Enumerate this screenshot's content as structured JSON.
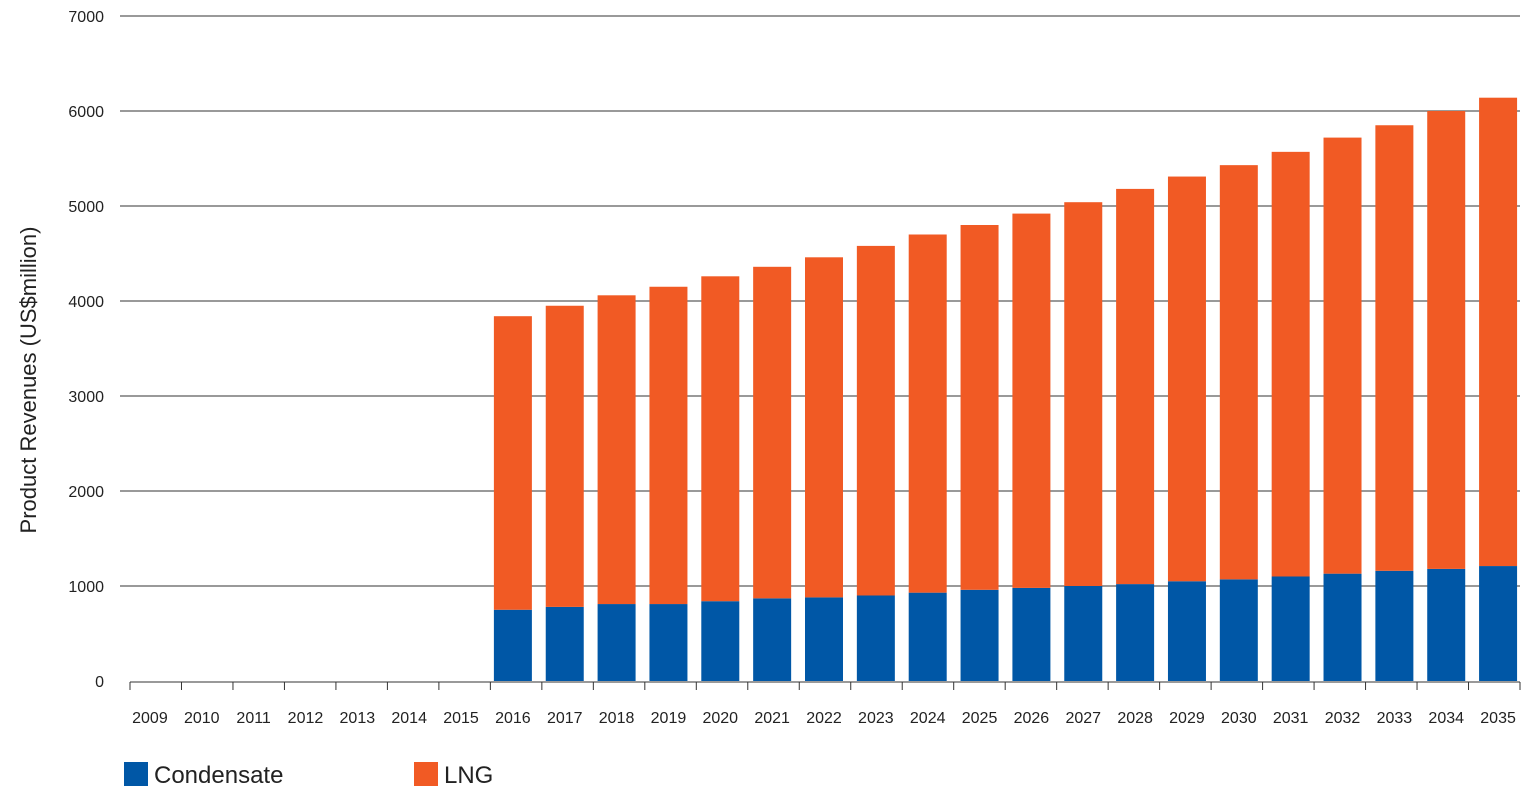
{
  "chart_data": {
    "type": "bar",
    "stacked": true,
    "title": "",
    "xlabel": "",
    "ylabel": "Product Revenues (US$million)",
    "ylim": [
      0,
      7000
    ],
    "yticks": [
      0,
      1000,
      2000,
      3000,
      4000,
      5000,
      6000,
      7000
    ],
    "grid": true,
    "legend_position": "bottom-left",
    "categories": [
      "2009",
      "2010",
      "2011",
      "2012",
      "2013",
      "2014",
      "2015",
      "2016",
      "2017",
      "2018",
      "2019",
      "2020",
      "2021",
      "2022",
      "2023",
      "2024",
      "2025",
      "2026",
      "2027",
      "2028",
      "2029",
      "2030",
      "2031",
      "2032",
      "2033",
      "2034",
      "2035"
    ],
    "series": [
      {
        "name": "Condensate",
        "color": "#0057a6",
        "values": [
          0,
          0,
          0,
          0,
          0,
          0,
          0,
          750,
          780,
          810,
          810,
          840,
          870,
          880,
          900,
          930,
          960,
          980,
          1000,
          1020,
          1050,
          1070,
          1100,
          1130,
          1160,
          1180,
          1210
        ]
      },
      {
        "name": "LNG",
        "color": "#f15a24",
        "values": [
          0,
          0,
          0,
          0,
          0,
          0,
          0,
          3090,
          3170,
          3250,
          3340,
          3420,
          3490,
          3580,
          3680,
          3770,
          3840,
          3940,
          4040,
          4160,
          4260,
          4360,
          4470,
          4590,
          4690,
          4820,
          4930
        ]
      }
    ],
    "colors": {
      "grid": "#333333",
      "axis": "#333333"
    }
  }
}
